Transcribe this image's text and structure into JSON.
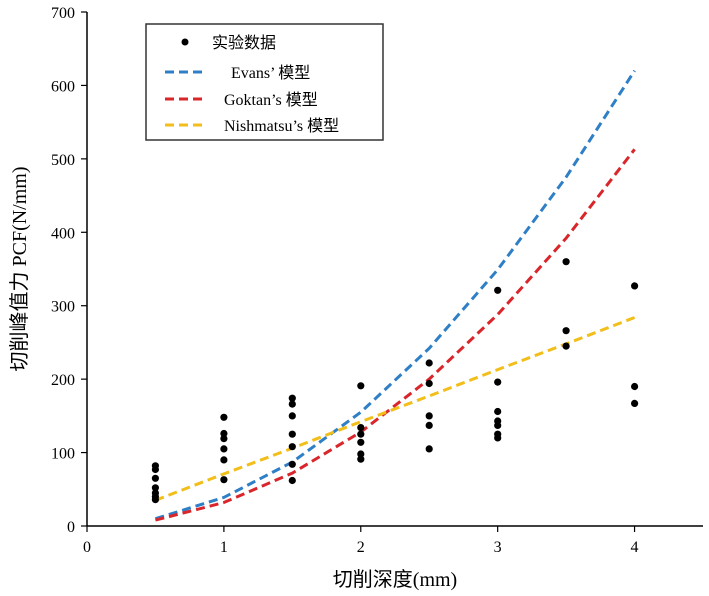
{
  "chart_data": {
    "type": "scatter",
    "xlabel": "切削深度(mm)",
    "ylabel": "切削峰值力 PCF(N/mm)",
    "xlim": [
      0,
      4.5
    ],
    "ylim": [
      0,
      700
    ],
    "x_ticks": [
      0,
      1,
      2,
      3,
      4
    ],
    "y_ticks": [
      0,
      100,
      200,
      300,
      400,
      500,
      600,
      700
    ],
    "grid": false,
    "legend_position": "top-left",
    "scatter_series": {
      "name": "实验数据",
      "color": "#000000",
      "points": [
        {
          "x": 0.5,
          "y": 82
        },
        {
          "x": 0.5,
          "y": 77
        },
        {
          "x": 0.5,
          "y": 65
        },
        {
          "x": 0.5,
          "y": 52
        },
        {
          "x": 0.5,
          "y": 45
        },
        {
          "x": 0.5,
          "y": 40
        },
        {
          "x": 0.5,
          "y": 36
        },
        {
          "x": 1.0,
          "y": 148
        },
        {
          "x": 1.0,
          "y": 126
        },
        {
          "x": 1.0,
          "y": 119
        },
        {
          "x": 1.0,
          "y": 105
        },
        {
          "x": 1.0,
          "y": 90
        },
        {
          "x": 1.0,
          "y": 63
        },
        {
          "x": 1.5,
          "y": 174
        },
        {
          "x": 1.5,
          "y": 166
        },
        {
          "x": 1.5,
          "y": 150
        },
        {
          "x": 1.5,
          "y": 125
        },
        {
          "x": 1.5,
          "y": 108
        },
        {
          "x": 1.5,
          "y": 84
        },
        {
          "x": 1.5,
          "y": 62
        },
        {
          "x": 2.0,
          "y": 191
        },
        {
          "x": 2.0,
          "y": 134
        },
        {
          "x": 2.0,
          "y": 125
        },
        {
          "x": 2.0,
          "y": 114
        },
        {
          "x": 2.0,
          "y": 98
        },
        {
          "x": 2.0,
          "y": 91
        },
        {
          "x": 2.5,
          "y": 222
        },
        {
          "x": 2.5,
          "y": 194
        },
        {
          "x": 2.5,
          "y": 150
        },
        {
          "x": 2.5,
          "y": 137
        },
        {
          "x": 2.5,
          "y": 105
        },
        {
          "x": 3.0,
          "y": 321
        },
        {
          "x": 3.0,
          "y": 196
        },
        {
          "x": 3.0,
          "y": 156
        },
        {
          "x": 3.0,
          "y": 143
        },
        {
          "x": 3.0,
          "y": 137
        },
        {
          "x": 3.0,
          "y": 125
        },
        {
          "x": 3.0,
          "y": 120
        },
        {
          "x": 3.5,
          "y": 360
        },
        {
          "x": 3.5,
          "y": 266
        },
        {
          "x": 3.5,
          "y": 245
        },
        {
          "x": 4.0,
          "y": 327
        },
        {
          "x": 4.0,
          "y": 190
        },
        {
          "x": 4.0,
          "y": 167
        }
      ]
    },
    "line_series": [
      {
        "name": "Evans’ 模型",
        "color": "#2f7fc6",
        "dash": "dashed",
        "x": [
          0.5,
          1.0,
          1.5,
          2.0,
          2.5,
          3.0,
          3.5,
          4.0
        ],
        "y": [
          10,
          39,
          87,
          155,
          242,
          349,
          475,
          620
        ]
      },
      {
        "name": "Goktan’s 模型",
        "color": "#d9262b",
        "dash": "dashed",
        "x": [
          0.5,
          1.0,
          1.5,
          2.0,
          2.5,
          3.0,
          3.5,
          4.0
        ],
        "y": [
          8,
          32,
          72,
          128,
          200,
          288,
          392,
          513
        ]
      },
      {
        "name": "Nishmatsu’s 模型",
        "color": "#f2be1a",
        "dash": "dashed",
        "x": [
          0.5,
          1.0,
          1.5,
          2.0,
          2.5,
          3.0,
          3.5,
          4.0
        ],
        "y": [
          35,
          71,
          106,
          142,
          177,
          213,
          248,
          284
        ]
      }
    ]
  }
}
